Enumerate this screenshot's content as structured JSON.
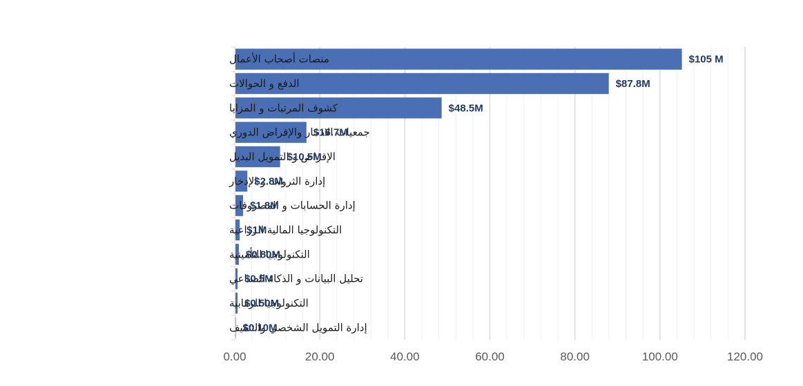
{
  "chart_data": {
    "type": "bar",
    "orientation": "horizontal",
    "title": "",
    "xlabel": "",
    "ylabel": "",
    "xlim": [
      0,
      120
    ],
    "x_ticks": [
      0,
      20,
      40,
      60,
      80,
      100,
      120
    ],
    "x_tick_labels": [
      "0.00",
      "20.00",
      "40.00",
      "60.00",
      "80.00",
      "100.00",
      "120.00"
    ],
    "minor_tick_step": 4,
    "grid": true,
    "legend": "none",
    "bar_color": "#4a6fb5",
    "label_color": "#1f3864",
    "categories": [
      "منصات أصحاب الأعمال",
      "الدفع و الحوالات",
      "كشوف المرتبات و المزايا",
      "جمعيات الادخار والإقراض الدوري",
      "الإقراض و التمويل البديل",
      "إدارة الثروات و الإدخار",
      "إدارة الحسابات و المصروفات",
      "التكنولوجيا المالية الزراعية",
      "التكنولوجيا التأمينية",
      "تحليل البيانات و الذكاء الصناعي",
      "التكنولوجيا الرقابية",
      "إدارة التمويل الشخصي والتثقيف"
    ],
    "values": [
      105,
      87.8,
      48.5,
      16.7,
      10.5,
      2.8,
      1.8,
      1.0,
      0.8,
      0.5,
      0.5,
      0.1
    ],
    "data_labels": [
      "$105 M",
      "$87.8M",
      "$48.5M",
      "$16.7M",
      "$10.5M",
      "$2.8M",
      "$1.8M",
      "$1M",
      "$0.80M",
      "$0.5M",
      "$0.50M",
      "$0.10M"
    ],
    "unit": "USD millions"
  }
}
